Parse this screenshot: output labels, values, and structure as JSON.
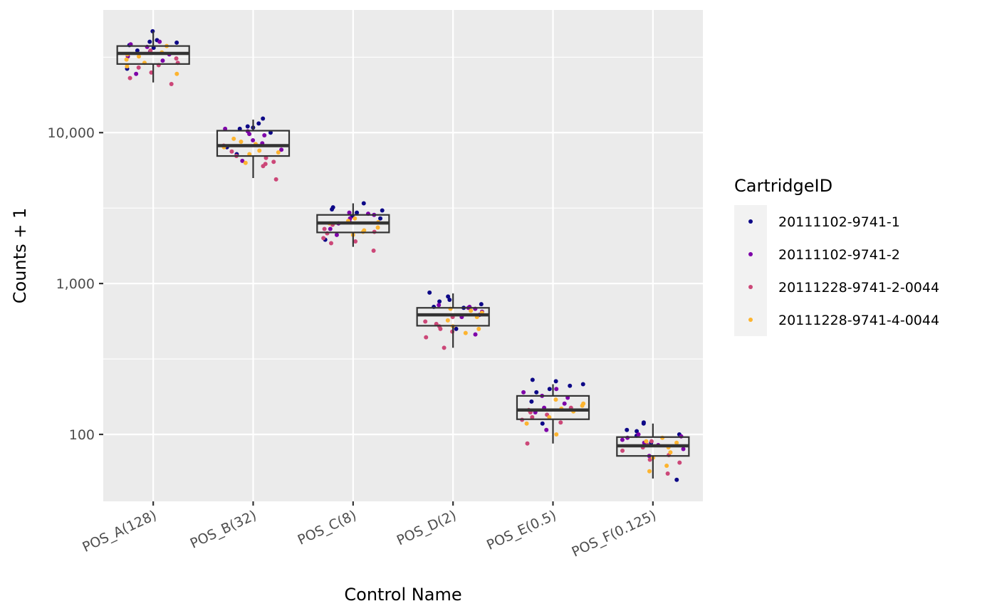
{
  "chart_data": {
    "type": "box",
    "xlabel": "Control Name",
    "ylabel": "Counts + 1",
    "y_scale": "log10",
    "ylim": [
      36,
      65000
    ],
    "y_ticks": [
      {
        "value": 100,
        "label": "100"
      },
      {
        "value": 1000,
        "label": "1,000"
      },
      {
        "value": 10000,
        "label": "10,000"
      }
    ],
    "categories": [
      "POS_A(128)",
      "POS_B(32)",
      "POS_C(8)",
      "POS_D(2)",
      "POS_E(0.5)",
      "POS_F(0.125)"
    ],
    "boxes": [
      {
        "category": "POS_A(128)",
        "whisker_low": 21500,
        "q1": 28500,
        "median": 33500,
        "q3": 37500,
        "whisker_high": 47000
      },
      {
        "category": "POS_B(32)",
        "whisker_low": 5000,
        "q1": 7000,
        "median": 8200,
        "q3": 10300,
        "whisker_high": 12200
      },
      {
        "category": "POS_C(8)",
        "whisker_low": 1750,
        "q1": 2180,
        "median": 2520,
        "q3": 2850,
        "whisker_high": 3400
      },
      {
        "category": "POS_D(2)",
        "whisker_low": 375,
        "q1": 525,
        "median": 620,
        "q3": 690,
        "whisker_high": 860
      },
      {
        "category": "POS_E(0.5)",
        "whisker_low": 87,
        "q1": 126,
        "median": 145,
        "q3": 180,
        "whisker_high": 215
      },
      {
        "category": "POS_F(0.125)",
        "whisker_low": 51,
        "q1": 72,
        "median": 84,
        "q3": 96,
        "whisker_high": 118
      }
    ],
    "legend": {
      "title": "CartridgeID",
      "position": "right",
      "entries": [
        {
          "name": "20111102-9741-1",
          "color": "#0d0887"
        },
        {
          "name": "20111102-9741-2",
          "color": "#7e03a8"
        },
        {
          "name": "20111228-9741-2-0044",
          "color": "#cc4778"
        },
        {
          "name": "20111228-9741-4-0044",
          "color": "#fdb42f"
        }
      ]
    },
    "points": {
      "20111102-9741-1": [
        [
          1,
          47000
        ],
        [
          1,
          41000
        ],
        [
          1,
          38000
        ],
        [
          1,
          35000
        ],
        [
          1,
          40000
        ],
        [
          1,
          36500
        ],
        [
          1,
          26500
        ],
        [
          1,
          39500
        ],
        [
          2,
          11500
        ],
        [
          2,
          11000
        ],
        [
          2,
          10600
        ],
        [
          2,
          10000
        ],
        [
          2,
          12400
        ],
        [
          2,
          8000
        ],
        [
          2,
          10800
        ],
        [
          2,
          7200
        ],
        [
          3,
          3400
        ],
        [
          3,
          3100
        ],
        [
          3,
          2950
        ],
        [
          3,
          2800
        ],
        [
          3,
          3200
        ],
        [
          3,
          1950
        ],
        [
          3,
          2700
        ],
        [
          3,
          3050
        ],
        [
          4,
          870
        ],
        [
          4,
          780
        ],
        [
          4,
          730
        ],
        [
          4,
          700
        ],
        [
          4,
          820
        ],
        [
          4,
          500
        ],
        [
          4,
          690
        ],
        [
          4,
          760
        ],
        [
          5,
          230
        ],
        [
          5,
          215
        ],
        [
          5,
          200
        ],
        [
          5,
          190
        ],
        [
          5,
          225
        ],
        [
          5,
          118
        ],
        [
          5,
          165
        ],
        [
          5,
          210
        ],
        [
          6,
          120
        ],
        [
          6,
          118
        ],
        [
          6,
          107
        ],
        [
          6,
          100
        ],
        [
          6,
          105
        ],
        [
          6,
          50
        ],
        [
          6,
          88
        ],
        [
          6,
          98
        ]
      ],
      "20111102-9741-2": [
        [
          1,
          40000
        ],
        [
          1,
          37000
        ],
        [
          1,
          33000
        ],
        [
          1,
          30000
        ],
        [
          1,
          38500
        ],
        [
          1,
          24500
        ],
        [
          1,
          34500
        ],
        [
          1,
          32000
        ],
        [
          2,
          10600
        ],
        [
          2,
          10200
        ],
        [
          2,
          9600
        ],
        [
          2,
          8500
        ],
        [
          2,
          7700
        ],
        [
          2,
          6500
        ],
        [
          2,
          9800
        ],
        [
          2,
          8900
        ],
        [
          3,
          2950
        ],
        [
          3,
          2850
        ],
        [
          3,
          2700
        ],
        [
          3,
          2600
        ],
        [
          3,
          2500
        ],
        [
          3,
          2100
        ],
        [
          3,
          2900
        ],
        [
          3,
          2300
        ],
        [
          4,
          720
        ],
        [
          4,
          700
        ],
        [
          4,
          680
        ],
        [
          4,
          650
        ],
        [
          4,
          620
        ],
        [
          4,
          460
        ],
        [
          4,
          690
        ],
        [
          4,
          600
        ],
        [
          5,
          200
        ],
        [
          5,
          190
        ],
        [
          5,
          180
        ],
        [
          5,
          150
        ],
        [
          5,
          140
        ],
        [
          5,
          107
        ],
        [
          5,
          160
        ],
        [
          5,
          175
        ],
        [
          6,
          100
        ],
        [
          6,
          97
        ],
        [
          6,
          92
        ],
        [
          6,
          88
        ],
        [
          6,
          85
        ],
        [
          6,
          72
        ],
        [
          6,
          95
        ],
        [
          6,
          80
        ]
      ],
      "20111228-9741-2-0044": [
        [
          1,
          35000
        ],
        [
          1,
          31000
        ],
        [
          1,
          28000
        ],
        [
          1,
          25000
        ],
        [
          1,
          23000
        ],
        [
          1,
          21000
        ],
        [
          1,
          29000
        ],
        [
          1,
          27000
        ],
        [
          2,
          8200
        ],
        [
          2,
          7500
        ],
        [
          2,
          6800
        ],
        [
          2,
          6200
        ],
        [
          2,
          6000
        ],
        [
          2,
          4900
        ],
        [
          2,
          7000
        ],
        [
          2,
          6400
        ],
        [
          3,
          2450
        ],
        [
          3,
          2300
        ],
        [
          3,
          2150
        ],
        [
          3,
          2000
        ],
        [
          3,
          1900
        ],
        [
          3,
          1650
        ],
        [
          3,
          2200
        ],
        [
          3,
          1850
        ],
        [
          4,
          600
        ],
        [
          4,
          560
        ],
        [
          4,
          520
        ],
        [
          4,
          480
        ],
        [
          4,
          440
        ],
        [
          4,
          375
        ],
        [
          4,
          540
        ],
        [
          4,
          500
        ],
        [
          5,
          150
        ],
        [
          5,
          140
        ],
        [
          5,
          130
        ],
        [
          5,
          125
        ],
        [
          5,
          120
        ],
        [
          5,
          87
        ],
        [
          5,
          135
        ],
        [
          5,
          145
        ],
        [
          6,
          90
        ],
        [
          6,
          85
        ],
        [
          6,
          78
        ],
        [
          6,
          73
        ],
        [
          6,
          68
        ],
        [
          6,
          55
        ],
        [
          6,
          82
        ],
        [
          6,
          65
        ]
      ],
      "20111228-9741-4-0044": [
        [
          1,
          37500
        ],
        [
          1,
          34000
        ],
        [
          1,
          32000
        ],
        [
          1,
          29000
        ],
        [
          1,
          27500
        ],
        [
          1,
          24500
        ],
        [
          1,
          33000
        ],
        [
          1,
          30500
        ],
        [
          2,
          9100
        ],
        [
          2,
          8700
        ],
        [
          2,
          8000
        ],
        [
          2,
          7600
        ],
        [
          2,
          7200
        ],
        [
          2,
          6300
        ],
        [
          2,
          8400
        ],
        [
          2,
          7400
        ],
        [
          3,
          2700
        ],
        [
          3,
          2600
        ],
        [
          3,
          2500
        ],
        [
          3,
          2350
        ],
        [
          3,
          2200
        ],
        [
          3,
          2100
        ],
        [
          3,
          2550
        ],
        [
          3,
          2250
        ],
        [
          4,
          680
        ],
        [
          4,
          640
        ],
        [
          4,
          600
        ],
        [
          4,
          570
        ],
        [
          4,
          520
        ],
        [
          4,
          470
        ],
        [
          4,
          660
        ],
        [
          4,
          500
        ],
        [
          5,
          170
        ],
        [
          5,
          160
        ],
        [
          5,
          148
        ],
        [
          5,
          142
        ],
        [
          5,
          130
        ],
        [
          5,
          118
        ],
        [
          5,
          155
        ],
        [
          5,
          100
        ],
        [
          6,
          95
        ],
        [
          6,
          90
        ],
        [
          6,
          82
        ],
        [
          6,
          76
        ],
        [
          6,
          70
        ],
        [
          6,
          57
        ],
        [
          6,
          88
        ],
        [
          6,
          62
        ]
      ]
    }
  }
}
